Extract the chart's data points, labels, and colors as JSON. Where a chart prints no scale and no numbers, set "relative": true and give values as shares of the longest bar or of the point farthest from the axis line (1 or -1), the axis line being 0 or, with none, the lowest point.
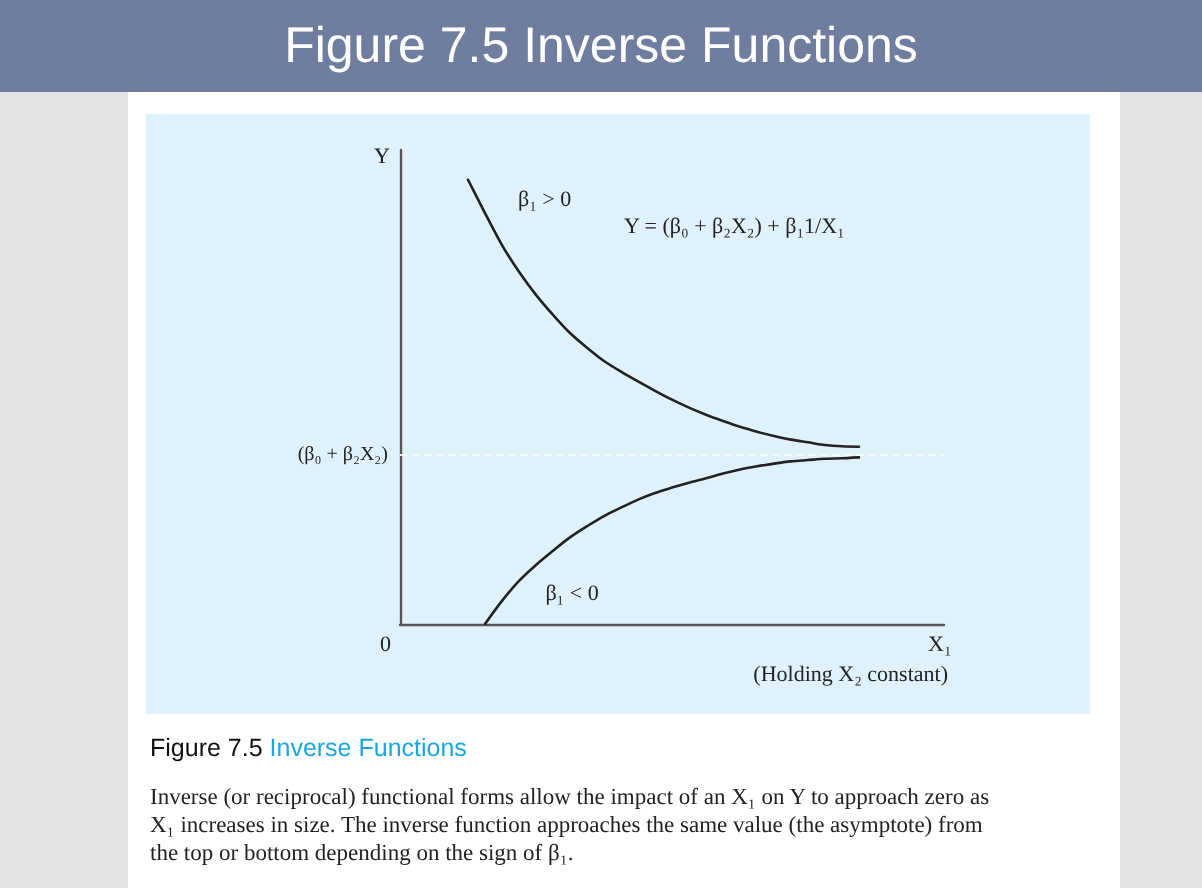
{
  "chart_data": {
    "type": "line",
    "relative": true,
    "title": "Figure 7.5 Inverse Functions",
    "xlabel": "X₁",
    "ylabel": "Y",
    "grid": false,
    "legend": false,
    "marker": "none",
    "line_style": "solid",
    "categories": [
      null,
      null,
      null,
      null,
      null,
      null,
      null,
      null,
      null,
      null,
      null,
      null,
      null,
      null,
      null,
      null,
      null,
      null,
      null,
      null,
      null,
      null,
      null,
      null,
      null,
      null,
      null,
      null,
      null,
      null,
      null,
      null,
      null
    ],
    "series": [
      {
        "name": "β₁ > 0",
        "color": "#222222",
        "values": [
          null,
          null,
          null,
          null,
          1,
          0.925,
          0.853,
          0.793,
          0.741,
          0.696,
          0.655,
          0.622,
          0.592,
          0.568,
          0.546,
          0.525,
          0.505,
          0.487,
          0.471,
          0.457,
          0.444,
          0.433,
          0.423,
          0.415,
          0.409,
          0.403,
          0.4,
          0.399,
          null,
          null,
          null,
          null,
          null
        ]
      },
      {
        "name": "β₁ < 0",
        "color": "#222222",
        "values": [
          null,
          null,
          null,
          null,
          null,
          0,
          0.052,
          0.097,
          0.133,
          0.165,
          0.195,
          0.22,
          0.243,
          0.262,
          0.28,
          0.295,
          0.307,
          0.318,
          0.328,
          0.339,
          0.348,
          0.355,
          0.361,
          0.366,
          0.369,
          0.372,
          0.373,
          0.375,
          null,
          null,
          null,
          null,
          null
        ]
      }
    ],
    "ref_lines": [
      {
        "axis": "y",
        "value": 0.384,
        "label": "(β₀ + β₂X₂)",
        "color": "#f5fbff",
        "line_style": "dashed"
      }
    ],
    "annotations": [
      "0",
      "Y = (β₀ + β₂X₂) + β₁1/X₁",
      "(Holding X₂ constant)",
      "Figure 7.5",
      "Inverse Functions",
      "Inverse (or reciprocal) functional forms allow the impact of an X₁ on Y to approach zero as X₁ increases in size. The inverse function approaches the same value (the asymptote) from the top or bottom depending on the sign of β₁."
    ]
  }
}
